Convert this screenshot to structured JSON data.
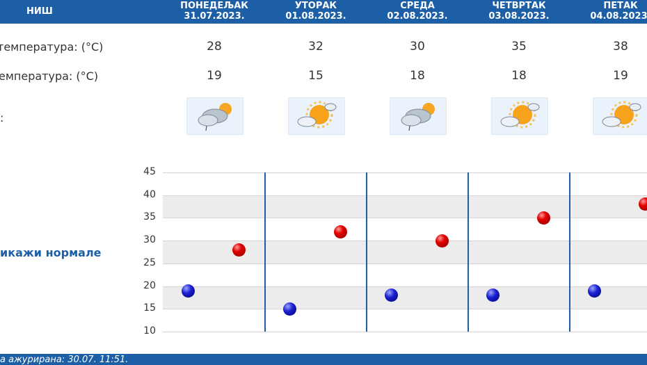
{
  "header": {
    "city": "НИШ",
    "days": [
      {
        "name": "ПОНЕДЕЉАК",
        "date": "31.07.2023."
      },
      {
        "name": "УТОРАК",
        "date": "01.08.2023."
      },
      {
        "name": "СРЕДА",
        "date": "02.08.2023."
      },
      {
        "name": "ЧЕТВРТАК",
        "date": "03.08.2023."
      },
      {
        "name": "ПЕТАК",
        "date": "04.08.2023."
      }
    ]
  },
  "rows": {
    "max_label": "температура: (°C)",
    "min_label": "емпература: (°C)",
    "icon_label": ":"
  },
  "max_temps": [
    "28",
    "32",
    "30",
    "35",
    "38"
  ],
  "min_temps": [
    "19",
    "15",
    "18",
    "18",
    "19"
  ],
  "weather_icons": [
    "cloud-sun-rain-icon",
    "sun-cloud-icon",
    "cloud-sun-rain-icon",
    "sun-cloud-icon",
    "sun-cloud-icon"
  ],
  "normals_link": "икажи нормале",
  "footer": {
    "updated": "а ажурирана:  30.07.  11:51."
  },
  "colors": {
    "header": "#1d5fa6",
    "max": "#e20000",
    "min": "#1a20d0"
  },
  "chart_data": {
    "type": "scatter",
    "ylim": [
      10,
      45
    ],
    "yticks": [
      "45",
      "40",
      "35",
      "30",
      "25",
      "20",
      "15",
      "10"
    ],
    "categories": [
      "31.07.2023.",
      "01.08.2023.",
      "02.08.2023.",
      "03.08.2023.",
      "04.08.2023."
    ],
    "series": [
      {
        "values": [
          28,
          32,
          30,
          35,
          38
        ],
        "color": "#e20000"
      },
      {
        "values": [
          19,
          15,
          18,
          18,
          19
        ],
        "color": "#1a20d0"
      }
    ],
    "grid": true
  }
}
